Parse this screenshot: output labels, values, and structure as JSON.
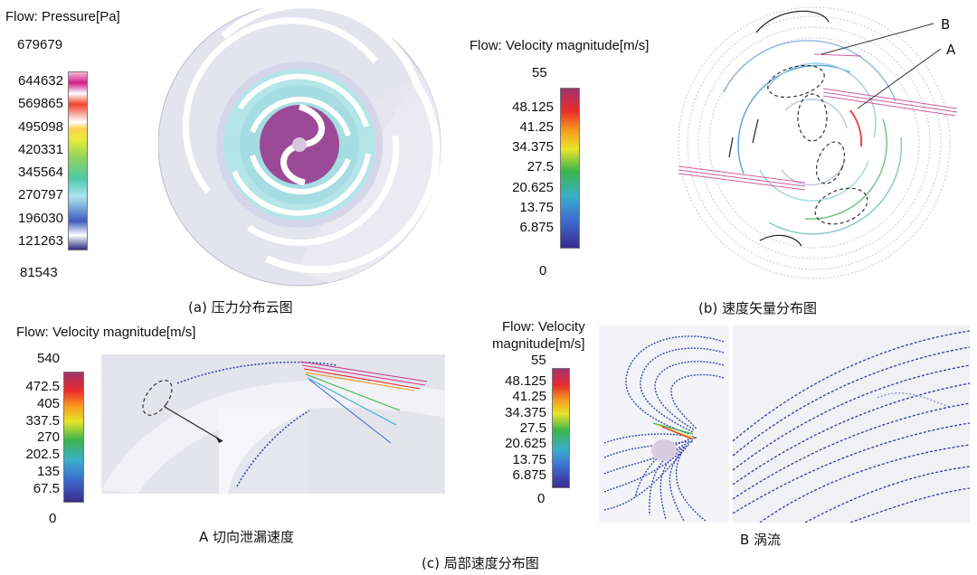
{
  "panel_a": {
    "legend_title": "Flow: Pressure[Pa]",
    "max_label": "679679",
    "ticks": [
      "644632",
      "569865",
      "495098",
      "420331",
      "345564",
      "270797",
      "196030",
      "121263"
    ],
    "min_label": "81543",
    "caption": "(a) 压力分布云图"
  },
  "panel_b": {
    "legend_title": "Flow: Velocity magnitude[m/s]",
    "max_label": "55",
    "ticks": [
      "48.125",
      "41.25",
      "34.375",
      "27.5",
      "20.625",
      "13.75",
      "6.875"
    ],
    "min_label": "0",
    "label_a": "A",
    "label_b": "B",
    "caption": "(b) 速度矢量分布图"
  },
  "panel_c_left": {
    "legend_title": "Flow: Velocity magnitude[m/s]",
    "max_label": "540",
    "ticks": [
      "472.5",
      "405",
      "337.5",
      "270",
      "202.5",
      "135",
      "67.5"
    ],
    "min_label": "0",
    "caption": "A 切向泄漏速度"
  },
  "panel_c_right": {
    "legend_title_line1": "Flow: Velocity",
    "legend_title_line2": "magnitude[m/s]",
    "max_label": "55",
    "ticks": [
      "48.125",
      "41.25",
      "34.375",
      "27.5",
      "20.625",
      "13.75",
      "6.875"
    ],
    "min_label": "0",
    "caption": "B 涡流"
  },
  "panel_c_caption": "(c) 局部速度分布图",
  "colors": {
    "bg_lavender": "#e2e2ee",
    "wrap_light": "#ecebf3",
    "cyan": "#9fdde3",
    "center_purple": "#9a4a96",
    "vector_blue": "#3548a8",
    "vector_magenta": "#c0438f"
  }
}
